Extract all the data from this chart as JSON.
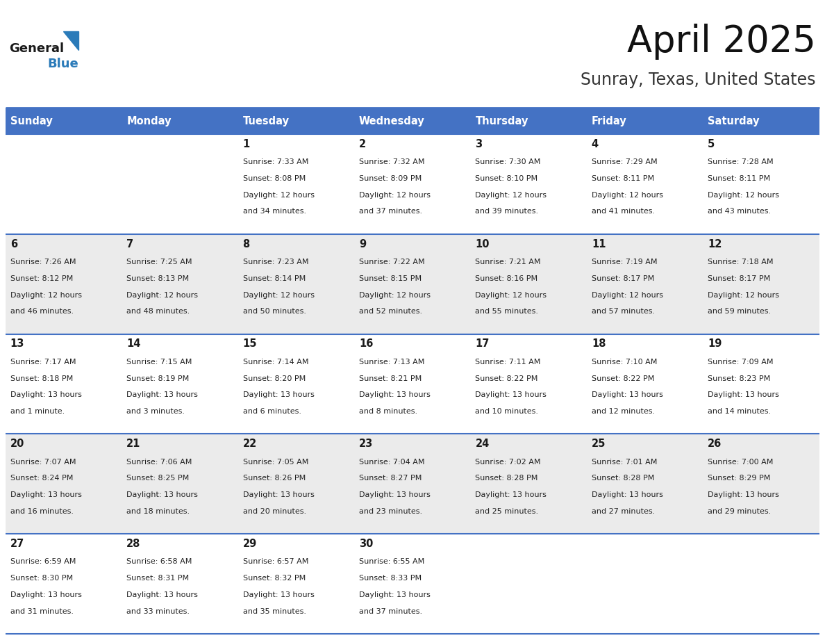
{
  "title": "April 2025",
  "subtitle": "Sunray, Texas, United States",
  "header_bg": "#4472C4",
  "header_text_color": "#FFFFFF",
  "day_names": [
    "Sunday",
    "Monday",
    "Tuesday",
    "Wednesday",
    "Thursday",
    "Friday",
    "Saturday"
  ],
  "row_bg_odd": "#FFFFFF",
  "row_bg_even": "#EBEBEB",
  "cell_text_color": "#222222",
  "border_color": "#4472C4",
  "logo_general_color": "#222222",
  "logo_blue_color": "#2B7BB9",
  "calendar": [
    [
      {
        "day": "",
        "sunrise": "",
        "sunset": "",
        "daylight": ""
      },
      {
        "day": "",
        "sunrise": "",
        "sunset": "",
        "daylight": ""
      },
      {
        "day": "1",
        "sunrise": "7:33 AM",
        "sunset": "8:08 PM",
        "daylight": "12 hours",
        "daylight2": "and 34 minutes."
      },
      {
        "day": "2",
        "sunrise": "7:32 AM",
        "sunset": "8:09 PM",
        "daylight": "12 hours",
        "daylight2": "and 37 minutes."
      },
      {
        "day": "3",
        "sunrise": "7:30 AM",
        "sunset": "8:10 PM",
        "daylight": "12 hours",
        "daylight2": "and 39 minutes."
      },
      {
        "day": "4",
        "sunrise": "7:29 AM",
        "sunset": "8:11 PM",
        "daylight": "12 hours",
        "daylight2": "and 41 minutes."
      },
      {
        "day": "5",
        "sunrise": "7:28 AM",
        "sunset": "8:11 PM",
        "daylight": "12 hours",
        "daylight2": "and 43 minutes."
      }
    ],
    [
      {
        "day": "6",
        "sunrise": "7:26 AM",
        "sunset": "8:12 PM",
        "daylight": "12 hours",
        "daylight2": "and 46 minutes."
      },
      {
        "day": "7",
        "sunrise": "7:25 AM",
        "sunset": "8:13 PM",
        "daylight": "12 hours",
        "daylight2": "and 48 minutes."
      },
      {
        "day": "8",
        "sunrise": "7:23 AM",
        "sunset": "8:14 PM",
        "daylight": "12 hours",
        "daylight2": "and 50 minutes."
      },
      {
        "day": "9",
        "sunrise": "7:22 AM",
        "sunset": "8:15 PM",
        "daylight": "12 hours",
        "daylight2": "and 52 minutes."
      },
      {
        "day": "10",
        "sunrise": "7:21 AM",
        "sunset": "8:16 PM",
        "daylight": "12 hours",
        "daylight2": "and 55 minutes."
      },
      {
        "day": "11",
        "sunrise": "7:19 AM",
        "sunset": "8:17 PM",
        "daylight": "12 hours",
        "daylight2": "and 57 minutes."
      },
      {
        "day": "12",
        "sunrise": "7:18 AM",
        "sunset": "8:17 PM",
        "daylight": "12 hours",
        "daylight2": "and 59 minutes."
      }
    ],
    [
      {
        "day": "13",
        "sunrise": "7:17 AM",
        "sunset": "8:18 PM",
        "daylight": "13 hours",
        "daylight2": "and 1 minute."
      },
      {
        "day": "14",
        "sunrise": "7:15 AM",
        "sunset": "8:19 PM",
        "daylight": "13 hours",
        "daylight2": "and 3 minutes."
      },
      {
        "day": "15",
        "sunrise": "7:14 AM",
        "sunset": "8:20 PM",
        "daylight": "13 hours",
        "daylight2": "and 6 minutes."
      },
      {
        "day": "16",
        "sunrise": "7:13 AM",
        "sunset": "8:21 PM",
        "daylight": "13 hours",
        "daylight2": "and 8 minutes."
      },
      {
        "day": "17",
        "sunrise": "7:11 AM",
        "sunset": "8:22 PM",
        "daylight": "13 hours",
        "daylight2": "and 10 minutes."
      },
      {
        "day": "18",
        "sunrise": "7:10 AM",
        "sunset": "8:22 PM",
        "daylight": "13 hours",
        "daylight2": "and 12 minutes."
      },
      {
        "day": "19",
        "sunrise": "7:09 AM",
        "sunset": "8:23 PM",
        "daylight": "13 hours",
        "daylight2": "and 14 minutes."
      }
    ],
    [
      {
        "day": "20",
        "sunrise": "7:07 AM",
        "sunset": "8:24 PM",
        "daylight": "13 hours",
        "daylight2": "and 16 minutes."
      },
      {
        "day": "21",
        "sunrise": "7:06 AM",
        "sunset": "8:25 PM",
        "daylight": "13 hours",
        "daylight2": "and 18 minutes."
      },
      {
        "day": "22",
        "sunrise": "7:05 AM",
        "sunset": "8:26 PM",
        "daylight": "13 hours",
        "daylight2": "and 20 minutes."
      },
      {
        "day": "23",
        "sunrise": "7:04 AM",
        "sunset": "8:27 PM",
        "daylight": "13 hours",
        "daylight2": "and 23 minutes."
      },
      {
        "day": "24",
        "sunrise": "7:02 AM",
        "sunset": "8:28 PM",
        "daylight": "13 hours",
        "daylight2": "and 25 minutes."
      },
      {
        "day": "25",
        "sunrise": "7:01 AM",
        "sunset": "8:28 PM",
        "daylight": "13 hours",
        "daylight2": "and 27 minutes."
      },
      {
        "day": "26",
        "sunrise": "7:00 AM",
        "sunset": "8:29 PM",
        "daylight": "13 hours",
        "daylight2": "and 29 minutes."
      }
    ],
    [
      {
        "day": "27",
        "sunrise": "6:59 AM",
        "sunset": "8:30 PM",
        "daylight": "13 hours",
        "daylight2": "and 31 minutes."
      },
      {
        "day": "28",
        "sunrise": "6:58 AM",
        "sunset": "8:31 PM",
        "daylight": "13 hours",
        "daylight2": "and 33 minutes."
      },
      {
        "day": "29",
        "sunrise": "6:57 AM",
        "sunset": "8:32 PM",
        "daylight": "13 hours",
        "daylight2": "and 35 minutes."
      },
      {
        "day": "30",
        "sunrise": "6:55 AM",
        "sunset": "8:33 PM",
        "daylight": "13 hours",
        "daylight2": "and 37 minutes."
      },
      {
        "day": "",
        "sunrise": "",
        "sunset": "",
        "daylight": "",
        "daylight2": ""
      },
      {
        "day": "",
        "sunrise": "",
        "sunset": "",
        "daylight": "",
        "daylight2": ""
      },
      {
        "day": "",
        "sunrise": "",
        "sunset": "",
        "daylight": "",
        "daylight2": ""
      }
    ]
  ]
}
